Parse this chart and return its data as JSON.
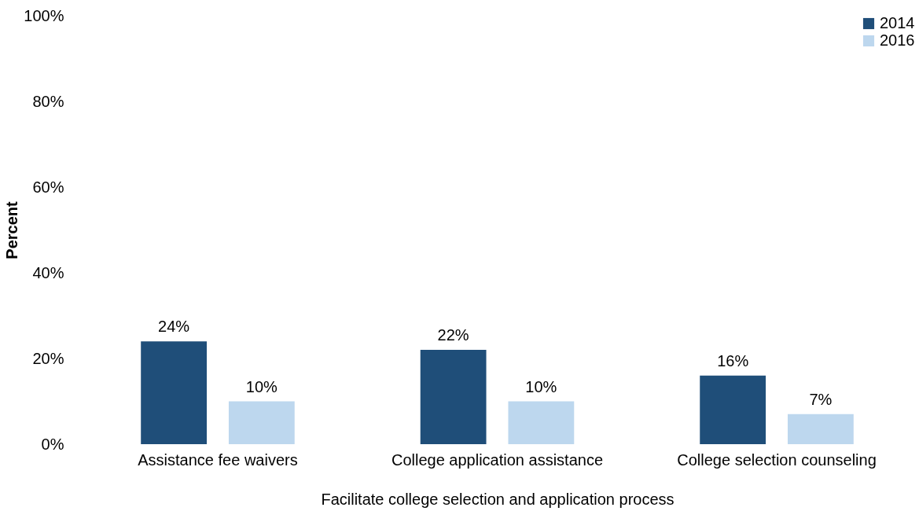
{
  "chart_data": {
    "type": "bar",
    "xlabel": "Facilitate college selection and application process",
    "ylabel": "Percent",
    "categories": [
      "Assistance fee waivers",
      "College application assistance",
      "College selection counseling"
    ],
    "series": [
      {
        "name": "2014",
        "color": "#1f4e79",
        "values": [
          24,
          22,
          16
        ],
        "value_labels": [
          "24%",
          "22%",
          "16%"
        ]
      },
      {
        "name": "2016",
        "color": "#bdd7ee",
        "values": [
          10,
          10,
          7
        ],
        "value_labels": [
          "10%",
          "10%",
          "7%"
        ]
      }
    ],
    "ylim": [
      0,
      100
    ],
    "yticks": [
      {
        "value": 0,
        "label": "0%"
      },
      {
        "value": 20,
        "label": "20%"
      },
      {
        "value": 40,
        "label": "40%"
      },
      {
        "value": 60,
        "label": "60%"
      },
      {
        "value": 80,
        "label": "80%"
      },
      {
        "value": 100,
        "label": "100%"
      }
    ],
    "grid": false,
    "legend": "top right"
  }
}
